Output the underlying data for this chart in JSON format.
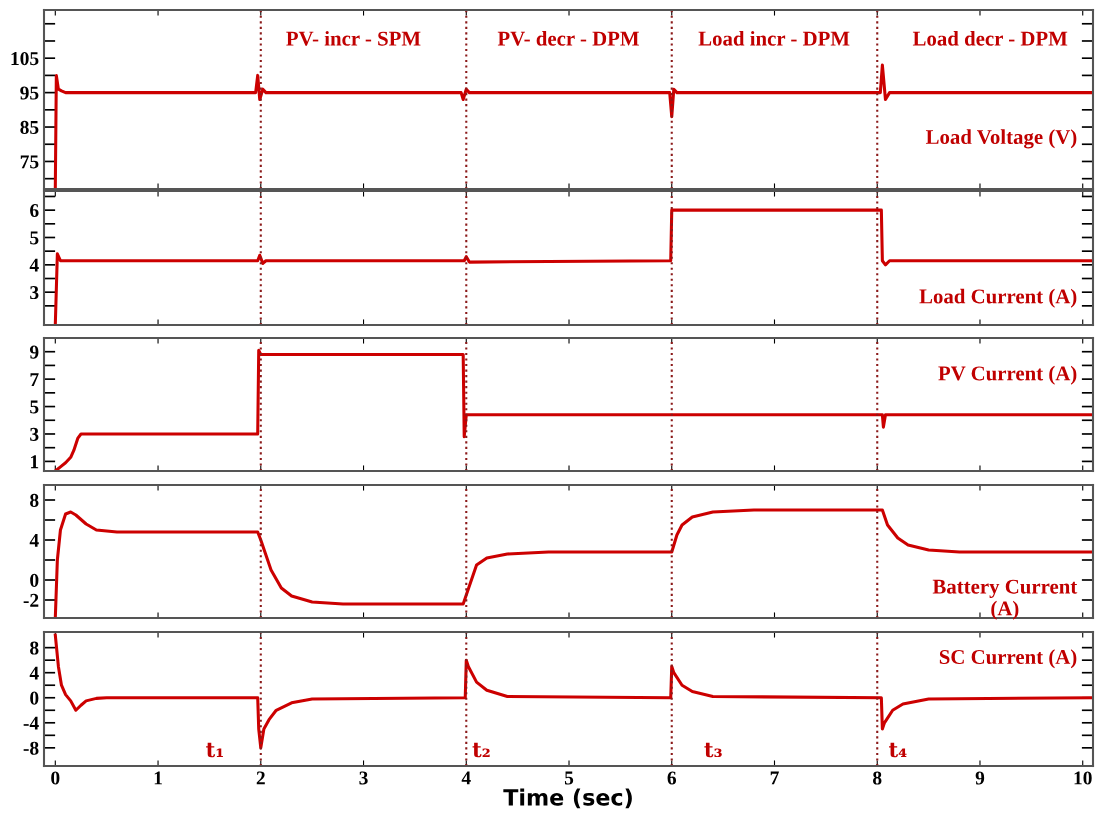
{
  "chart_data": [
    {
      "type": "line",
      "x": [
        0,
        0.01,
        0.03,
        0.06,
        0.1,
        0.3,
        1.95,
        1.97,
        1.99,
        2.02,
        2.05,
        3.95,
        3.97,
        4.0,
        4.03,
        5.98,
        6.0,
        6.02,
        6.05,
        8.03,
        8.05,
        8.08,
        8.12,
        10.1
      ],
      "series": [
        {
          "color": "#cc0000",
          "values": [
            67,
            100,
            96,
            95.5,
            95,
            95,
            95,
            100,
            93,
            96,
            95,
            95,
            93,
            96,
            95,
            95,
            88,
            96,
            95,
            95,
            103,
            93,
            95,
            95
          ]
        }
      ],
      "xlim": [
        -0.11,
        10.1
      ],
      "xticks": [
        0,
        1,
        2,
        3,
        4,
        5,
        6,
        7,
        8,
        9,
        10
      ],
      "ylim": [
        67,
        119
      ],
      "yticks": [
        {
          "value": 70,
          "label": null
        },
        75,
        {
          "value": 80,
          "label": null
        },
        85,
        {
          "value": 90,
          "label": null
        },
        95,
        {
          "value": 100,
          "label": null
        },
        105,
        {
          "value": 110,
          "label": null
        },
        {
          "value": 115,
          "label": null
        }
      ],
      "tick_labels": "y",
      "grid": false,
      "ref_lines": [
        {
          "axis": "x",
          "value": 2,
          "color": "#8b1a1a",
          "line_style": "dotted"
        },
        {
          "axis": "x",
          "value": 4,
          "color": "#8b1a1a",
          "line_style": "dotted"
        },
        {
          "axis": "x",
          "value": 6,
          "color": "#8b1a1a",
          "line_style": "dotted"
        },
        {
          "axis": "x",
          "value": 8,
          "color": "#8b1a1a",
          "line_style": "dotted"
        }
      ],
      "annotations": [
        "PV- incr - SPM",
        "PV- decr - DPM",
        "Load incr - DPM",
        "Load decr - DPM",
        "Load Voltage (V)"
      ]
    },
    {
      "type": "line",
      "x": [
        0,
        0.02,
        0.05,
        0.1,
        1.97,
        1.99,
        2.02,
        2.05,
        3.98,
        4.0,
        4.03,
        5.99,
        6.0,
        6.02,
        8.04,
        8.05,
        8.08,
        8.12,
        10.1
      ],
      "series": [
        {
          "color": "#cc0000",
          "values": [
            1.8,
            4.4,
            4.15,
            4.15,
            4.15,
            4.35,
            4.05,
            4.15,
            4.15,
            4.3,
            4.1,
            4.15,
            6.0,
            6.0,
            6.0,
            4.15,
            4.0,
            4.15,
            4.15
          ]
        }
      ],
      "xlim": [
        -0.11,
        10.1
      ],
      "xticks": [
        0,
        1,
        2,
        3,
        4,
        5,
        6,
        7,
        8,
        9,
        10
      ],
      "ylim": [
        1.8,
        6.7
      ],
      "yticks": [
        {
          "value": 2.5,
          "label": null
        },
        3,
        {
          "value": 3.5,
          "label": null
        },
        4,
        {
          "value": 4.5,
          "label": null
        },
        5,
        {
          "value": 5.5,
          "label": null
        },
        6,
        {
          "value": 6.5,
          "label": null
        }
      ],
      "tick_labels": "y",
      "grid": false,
      "ref_lines": [
        {
          "axis": "x",
          "value": 2,
          "color": "#8b1a1a",
          "line_style": "dotted"
        },
        {
          "axis": "x",
          "value": 4,
          "color": "#8b1a1a",
          "line_style": "dotted"
        },
        {
          "axis": "x",
          "value": 6,
          "color": "#8b1a1a",
          "line_style": "dotted"
        },
        {
          "axis": "x",
          "value": 8,
          "color": "#8b1a1a",
          "line_style": "dotted"
        }
      ],
      "annotations": [
        "Load Current (A)"
      ]
    },
    {
      "type": "line",
      "x": [
        0,
        0.05,
        0.1,
        0.15,
        0.18,
        0.22,
        0.25,
        1.97,
        1.98,
        2.0,
        2.05,
        3.97,
        3.98,
        4.0,
        6.0,
        8.05,
        8.06,
        8.08,
        10.1
      ],
      "series": [
        {
          "color": "#cc0000",
          "values": [
            0.3,
            0.6,
            0.9,
            1.3,
            1.8,
            2.7,
            3.0,
            3.0,
            9.1,
            8.8,
            8.8,
            8.8,
            2.8,
            4.4,
            4.4,
            4.4,
            3.5,
            4.4,
            4.4
          ]
        }
      ],
      "xlim": [
        -0.11,
        10.1
      ],
      "xticks": [
        0,
        1,
        2,
        3,
        4,
        5,
        6,
        7,
        8,
        9,
        10
      ],
      "ylim": [
        0.3,
        10
      ],
      "yticks": [
        1,
        {
          "value": 2,
          "label": null
        },
        3,
        {
          "value": 4,
          "label": null
        },
        5,
        {
          "value": 6,
          "label": null
        },
        7,
        {
          "value": 8,
          "label": null
        },
        9
      ],
      "tick_labels": "y",
      "grid": false,
      "ref_lines": [
        {
          "axis": "x",
          "value": 2,
          "color": "#8b1a1a",
          "line_style": "dotted"
        },
        {
          "axis": "x",
          "value": 4,
          "color": "#8b1a1a",
          "line_style": "dotted"
        },
        {
          "axis": "x",
          "value": 6,
          "color": "#8b1a1a",
          "line_style": "dotted"
        },
        {
          "axis": "x",
          "value": 8,
          "color": "#8b1a1a",
          "line_style": "dotted"
        }
      ],
      "annotations": [
        "PV Current (A)"
      ]
    },
    {
      "type": "line",
      "x": [
        0,
        0.02,
        0.05,
        0.1,
        0.15,
        0.2,
        0.3,
        0.4,
        0.6,
        1.97,
        2.0,
        2.1,
        2.2,
        2.3,
        2.5,
        2.8,
        3.97,
        4.0,
        4.1,
        4.2,
        4.4,
        4.8,
        6.0,
        6.05,
        6.1,
        6.2,
        6.4,
        6.8,
        8.05,
        8.1,
        8.2,
        8.3,
        8.5,
        8.8,
        10.1
      ],
      "series": [
        {
          "color": "#cc0000",
          "values": [
            -3.8,
            2,
            5,
            6.6,
            6.8,
            6.5,
            5.6,
            5.0,
            4.8,
            4.8,
            4.0,
            1.0,
            -0.8,
            -1.6,
            -2.2,
            -2.4,
            -2.4,
            -1.5,
            1.5,
            2.2,
            2.6,
            2.8,
            2.8,
            4.5,
            5.5,
            6.3,
            6.8,
            7.0,
            7.0,
            5.5,
            4.2,
            3.5,
            3.0,
            2.8,
            2.8
          ]
        }
      ],
      "xlim": [
        -0.11,
        10.1
      ],
      "xticks": [
        0,
        1,
        2,
        3,
        4,
        5,
        6,
        7,
        8,
        9,
        10
      ],
      "ylim": [
        -3.8,
        9.5
      ],
      "yticks": [
        -2,
        0,
        {
          "value": 2,
          "label": null
        },
        4,
        {
          "value": 6,
          "label": null
        },
        8
      ],
      "tick_labels": "y",
      "grid": false,
      "ref_lines": [
        {
          "axis": "x",
          "value": 2,
          "color": "#8b1a1a",
          "line_style": "dotted"
        },
        {
          "axis": "x",
          "value": 4,
          "color": "#8b1a1a",
          "line_style": "dotted"
        },
        {
          "axis": "x",
          "value": 6,
          "color": "#8b1a1a",
          "line_style": "dotted"
        },
        {
          "axis": "x",
          "value": 8,
          "color": "#8b1a1a",
          "line_style": "dotted"
        }
      ],
      "annotations": [
        "Battery Current\n(A)"
      ]
    },
    {
      "type": "line",
      "x": [
        0,
        0.03,
        0.06,
        0.1,
        0.15,
        0.2,
        0.25,
        0.3,
        0.4,
        0.5,
        1.97,
        1.98,
        2.0,
        2.03,
        2.08,
        2.15,
        2.3,
        2.5,
        3.99,
        4.0,
        4.02,
        4.1,
        4.2,
        4.4,
        5.99,
        6.0,
        6.02,
        6.1,
        6.2,
        6.4,
        8.04,
        8.05,
        8.07,
        8.15,
        8.25,
        8.5,
        10.1
      ],
      "series": [
        {
          "color": "#cc0000",
          "values": [
            10,
            5,
            2,
            0.5,
            -0.5,
            -2,
            -1.2,
            -0.5,
            -0.1,
            0,
            0,
            -5,
            -8,
            -5,
            -3.5,
            -2,
            -0.8,
            -0.2,
            0,
            6,
            5,
            2.5,
            1.2,
            0.2,
            0,
            5,
            4,
            2,
            1,
            0.2,
            0,
            -5,
            -4,
            -2,
            -1,
            -0.2,
            0
          ]
        }
      ],
      "xlim": [
        -0.11,
        10.1
      ],
      "xticks": [
        0,
        1,
        2,
        3,
        4,
        5,
        6,
        7,
        8,
        9,
        10
      ],
      "ylim": [
        -10.9,
        10.5
      ],
      "yticks": [
        -8,
        {
          "value": -6,
          "label": null
        },
        -4,
        {
          "value": -2,
          "label": null
        },
        0,
        {
          "value": 2,
          "label": null
        },
        4,
        {
          "value": 6,
          "label": null
        },
        8
      ],
      "xlabel": "Time (sec)",
      "grid": false,
      "ref_lines": [
        {
          "axis": "x",
          "value": 2,
          "color": "#8b1a1a",
          "line_style": "dotted"
        },
        {
          "axis": "x",
          "value": 4,
          "color": "#8b1a1a",
          "line_style": "dotted"
        },
        {
          "axis": "x",
          "value": 6,
          "color": "#8b1a1a",
          "line_style": "dotted"
        },
        {
          "axis": "x",
          "value": 8,
          "color": "#8b1a1a",
          "line_style": "dotted"
        }
      ],
      "annotations": [
        "t₁",
        "t₂",
        "t₃",
        "t₄",
        "SC Current (A)"
      ]
    }
  ]
}
